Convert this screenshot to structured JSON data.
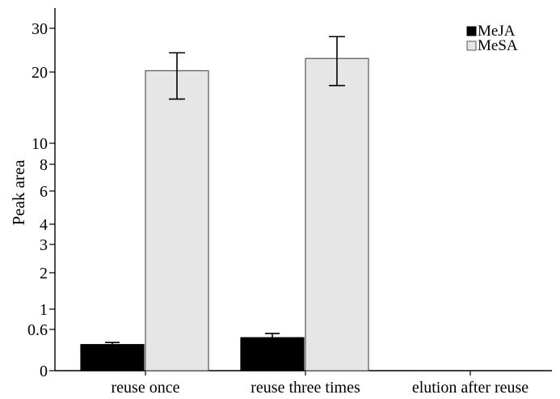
{
  "chart_data": {
    "type": "bar",
    "title": "",
    "xlabel": "",
    "ylabel": "Peak area",
    "ylim": [
      0,
      30
    ],
    "y_scale": "nonlinear (compressed upper range)",
    "y_ticks": [
      0,
      0.6,
      1,
      2,
      3,
      4,
      6,
      8,
      10,
      20,
      30
    ],
    "y_tick_labels": [
      "0",
      "0.6",
      "1",
      "2",
      "3",
      "4",
      "6",
      "8",
      "10",
      "20",
      "30"
    ],
    "categories": [
      "reuse once",
      "reuse three times",
      "elution after reuse"
    ],
    "series": [
      {
        "name": "MeJA",
        "color": "#000000",
        "values": [
          0.38,
          0.48,
          0
        ],
        "errors": [
          0.03,
          0.06,
          0
        ]
      },
      {
        "name": "MeSA",
        "color": "#e6e6e6",
        "values": [
          20.3,
          23.1,
          0
        ],
        "errors": [
          4.1,
          5.0,
          0
        ]
      }
    ],
    "grid": false,
    "legend_position": "top-right"
  }
}
